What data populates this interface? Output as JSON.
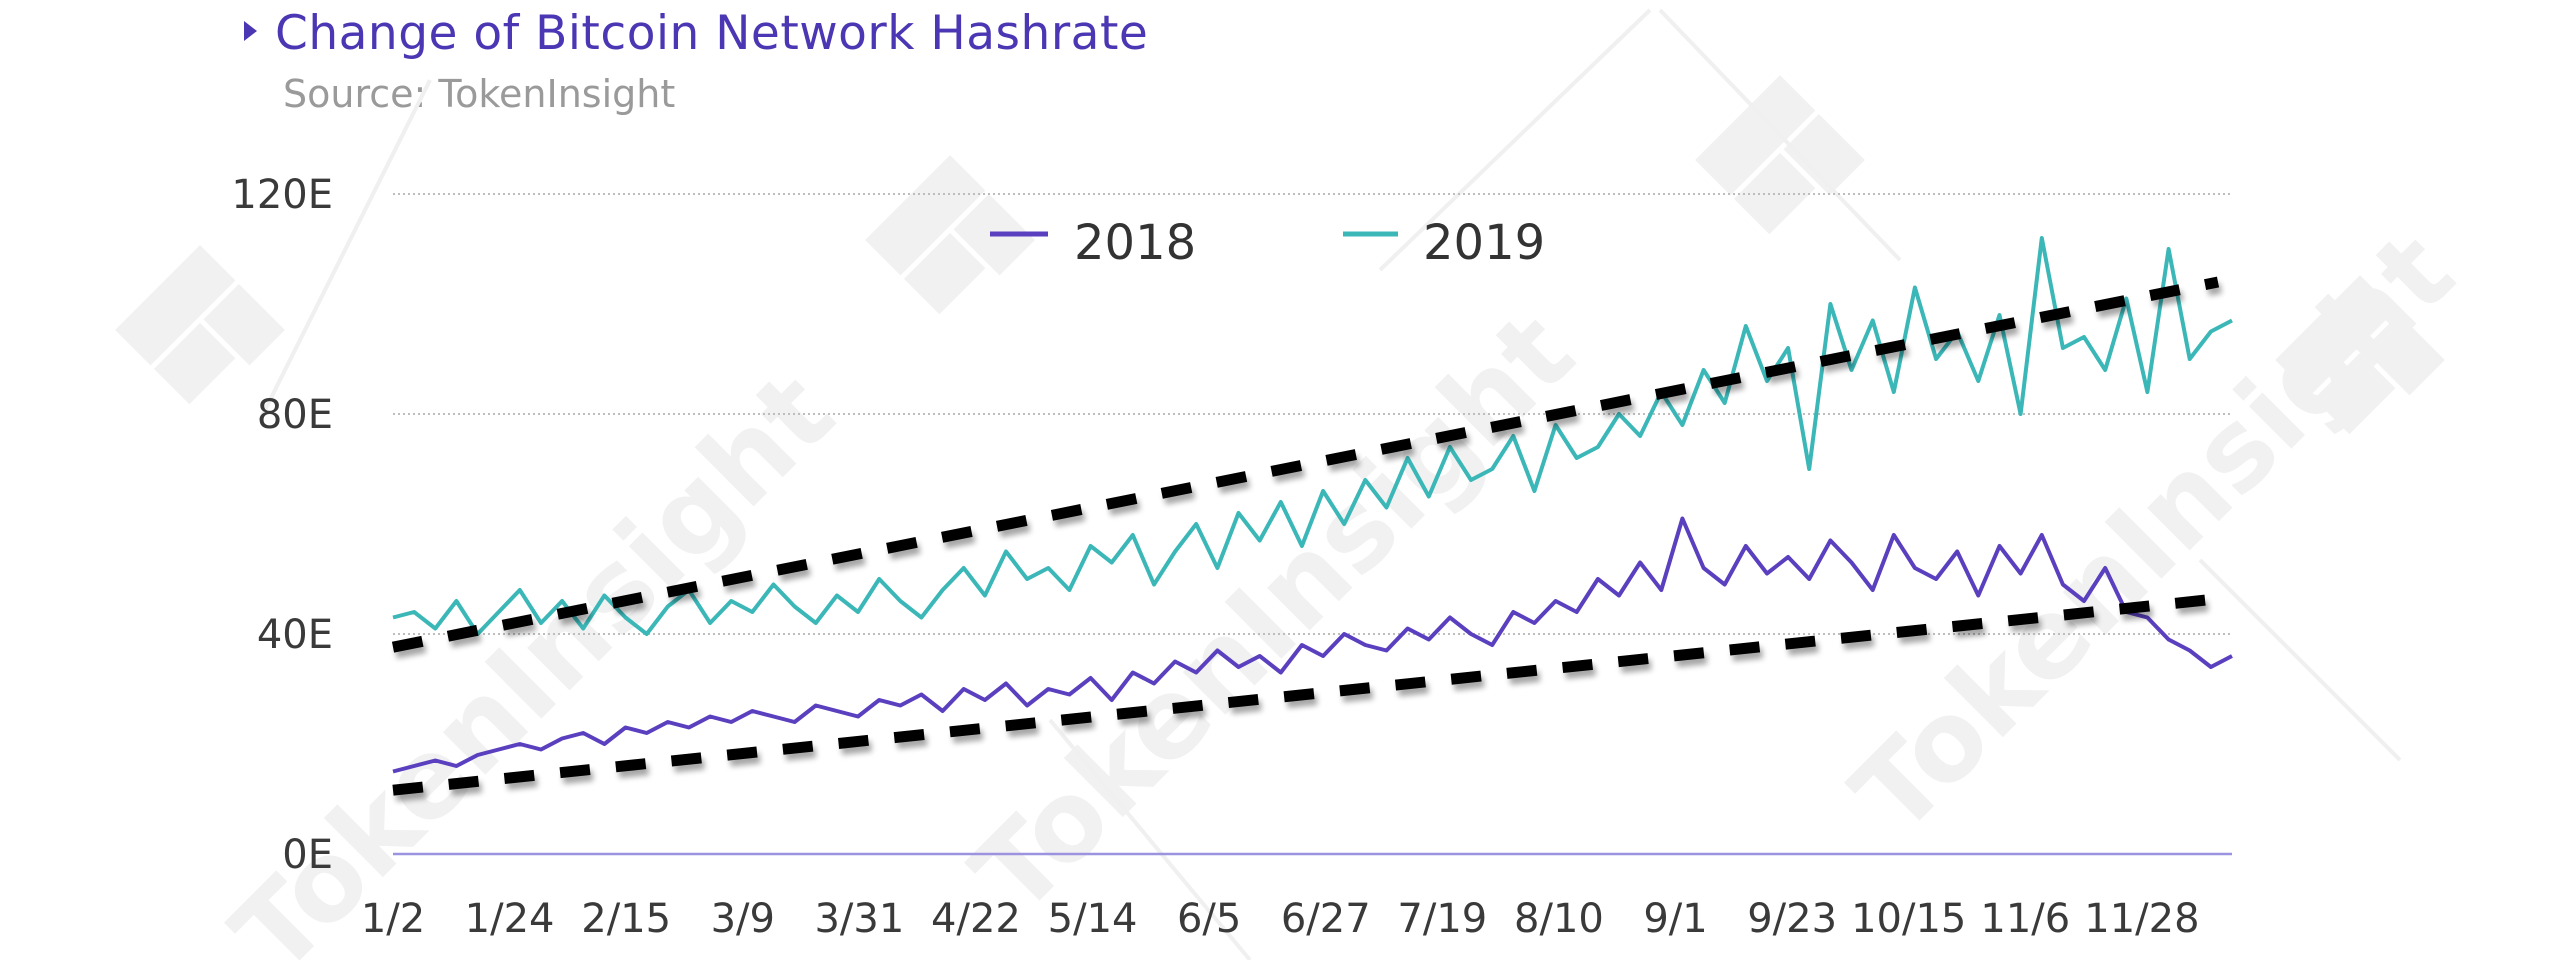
{
  "header": {
    "title": "Change of Bitcoin Network Hashrate",
    "subtitle": "Source: TokenInsight"
  },
  "colors": {
    "title": "#4b37b3",
    "series_2018": "#5a3fbf",
    "series_2019": "#3bb7b8",
    "trendline": "#000000",
    "gridline": "#bdbdbd",
    "baseline": "#9b92e0",
    "watermark": "#f1f1f1"
  },
  "watermark": {
    "text": "TokenInsight"
  },
  "chart_data": {
    "type": "line",
    "title": "Change of Bitcoin Network Hashrate",
    "subtitle": "Source: TokenInsight",
    "xlabel": "",
    "ylabel": "",
    "ylim": [
      0,
      120
    ],
    "yticks": [
      "0E",
      "40E",
      "80E",
      "120E"
    ],
    "ytick_values": [
      0,
      40,
      80,
      120
    ],
    "grid": true,
    "legend_position": "top-center",
    "x_tick_labels": [
      "1/2",
      "1/24",
      "2/15",
      "3/9",
      "3/31",
      "4/22",
      "5/14",
      "6/5",
      "6/27",
      "7/19",
      "8/10",
      "9/1",
      "9/23",
      "10/15",
      "11/6",
      "11/28"
    ],
    "x_tick_day_offsets": [
      0,
      22,
      44,
      66,
      88,
      110,
      132,
      154,
      176,
      198,
      220,
      242,
      264,
      286,
      308,
      330
    ],
    "x_span_days": 347,
    "sample_interval_days": 4,
    "series": [
      {
        "name": "2018",
        "color": "#5a3fbf",
        "values": [
          15,
          16,
          17,
          16,
          18,
          19,
          20,
          19,
          21,
          22,
          20,
          23,
          22,
          24,
          23,
          25,
          24,
          26,
          25,
          24,
          27,
          26,
          25,
          28,
          27,
          29,
          26,
          30,
          28,
          31,
          27,
          30,
          29,
          32,
          28,
          33,
          31,
          35,
          33,
          37,
          34,
          36,
          33,
          38,
          36,
          40,
          38,
          37,
          41,
          39,
          43,
          40,
          38,
          44,
          42,
          46,
          44,
          50,
          47,
          53,
          48,
          61,
          52,
          49,
          56,
          51,
          54,
          50,
          57,
          53,
          48,
          58,
          52,
          50,
          55,
          47,
          56,
          51,
          58,
          49,
          46,
          52,
          44,
          43,
          39,
          37,
          34,
          36
        ],
        "trendline": {
          "start": 11.6,
          "end": 46.4,
          "style": "dashed"
        }
      },
      {
        "name": "2019",
        "color": "#3bb7b8",
        "values": [
          43,
          44,
          41,
          46,
          40,
          44,
          48,
          42,
          46,
          41,
          47,
          43,
          40,
          45,
          48,
          42,
          46,
          44,
          49,
          45,
          42,
          47,
          44,
          50,
          46,
          43,
          48,
          52,
          47,
          55,
          50,
          52,
          48,
          56,
          53,
          58,
          49,
          55,
          60,
          52,
          62,
          57,
          64,
          56,
          66,
          60,
          68,
          63,
          72,
          65,
          74,
          68,
          70,
          76,
          66,
          78,
          72,
          74,
          80,
          76,
          84,
          78,
          88,
          82,
          96,
          86,
          92,
          70,
          100,
          88,
          97,
          84,
          103,
          90,
          95,
          86,
          98,
          80,
          112,
          92,
          94,
          88,
          101,
          84,
          110,
          90,
          95,
          97
        ],
        "trendline": {
          "start": 37.6,
          "end": 104,
          "style": "dashed"
        }
      }
    ]
  },
  "legend": {
    "items": [
      {
        "label": "2018",
        "color": "#5a3fbf"
      },
      {
        "label": "2019",
        "color": "#3bb7b8"
      }
    ]
  }
}
